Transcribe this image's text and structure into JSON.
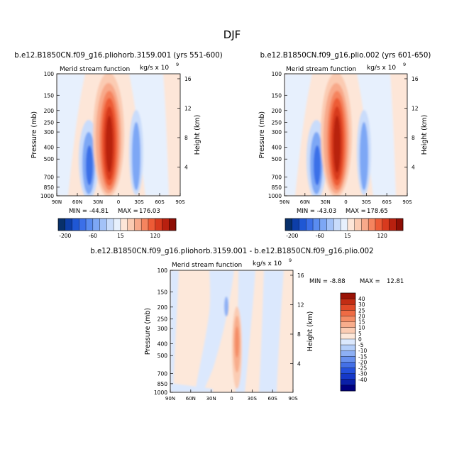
{
  "page": {
    "title": "DJF",
    "min_max_sep": "MAX ="
  },
  "palettes": {
    "top": [
      "#08306b",
      "#0d3ea8",
      "#1f57d4",
      "#3b6fe8",
      "#5a8cf0",
      "#7da7f5",
      "#a3c2f8",
      "#c9dcfb",
      "#e7f0fd",
      "#fde6d8",
      "#fbcbb2",
      "#f8a98a",
      "#f5845f",
      "#ed5b36",
      "#d83a1e",
      "#b8200f",
      "#8e0e05"
    ],
    "diff": [
      "#000080",
      "#0a1fa8",
      "#1538c8",
      "#2450dc",
      "#4470e6",
      "#6890ee",
      "#8eb0f4",
      "#b4cef9",
      "#dbe8fd",
      "#fde8da",
      "#fbccb3",
      "#f8ad8c",
      "#f48d66",
      "#ee6b44",
      "#e04a28",
      "#c22d14",
      "#9a1306"
    ]
  },
  "colorbars": {
    "top_labels": [
      "-200",
      "-60",
      "15",
      "120"
    ],
    "diff_labels": [
      "40",
      "30",
      "25",
      "20",
      "15",
      "10",
      "5",
      "0",
      "-5",
      "-10",
      "-15",
      "-20",
      "-25",
      "-30",
      "-40"
    ]
  },
  "chart_data": [
    {
      "type": "heatmap",
      "title": "b.e12.B1850CN.f09_g16.pliohorb.3159.001 (yrs 551-600)",
      "subtitle_left": "Merid stream function",
      "subtitle_right": "kg/s x 10",
      "subtitle_exp": "9",
      "ylabel": "Pressure (mb)",
      "ylabel_right": "Height (km)",
      "x_ticks": [
        "90N",
        "60N",
        "30N",
        "0",
        "30S",
        "60S",
        "90S"
      ],
      "y_ticks": [
        "100",
        "150",
        "200",
        "250",
        "300",
        "400",
        "500",
        "700",
        "850",
        "1000"
      ],
      "y_right_ticks": [
        "16",
        "12",
        "8",
        "4"
      ],
      "min_label": "MIN = -44.81",
      "max_value": "176.03",
      "features": [
        {
          "lat": 5,
          "p": 400,
          "value": 176.03
        },
        {
          "lat": 50,
          "p": 450,
          "value": -44.81
        },
        {
          "lat": -35,
          "p": 450,
          "value": -40
        },
        {
          "lat": -60,
          "p": 500,
          "value": 15
        }
      ]
    },
    {
      "type": "heatmap",
      "title": "b.e12.B1850CN.f09_g16.plio.002 (yrs 601-650)",
      "subtitle_left": "Merid stream function",
      "subtitle_right": "kg/s x 10",
      "subtitle_exp": "9",
      "ylabel": "Pressure (mb)",
      "ylabel_right": "Height (km)",
      "x_ticks": [
        "90N",
        "60N",
        "30N",
        "0",
        "30S",
        "60S",
        "90S"
      ],
      "y_ticks": [
        "100",
        "150",
        "200",
        "250",
        "300",
        "400",
        "500",
        "700",
        "850",
        "1000"
      ],
      "y_right_ticks": [
        "16",
        "12",
        "8",
        "4"
      ],
      "min_label": "MIN = -43.03",
      "max_value": "178.65",
      "features": [
        {
          "lat": 5,
          "p": 400,
          "value": 178.65
        },
        {
          "lat": 50,
          "p": 450,
          "value": -43.03
        },
        {
          "lat": -35,
          "p": 450,
          "value": -40
        },
        {
          "lat": -60,
          "p": 500,
          "value": 15
        }
      ]
    },
    {
      "type": "heatmap",
      "title": "b.e12.B1850CN.f09_g16.pliohorb.3159.001 - b.e12.B1850CN.f09_g16.plio.002",
      "subtitle_left": "Merid stream function",
      "subtitle_right": "kg/s x 10",
      "subtitle_exp": "9",
      "ylabel": "Pressure (mb)",
      "ylabel_right": "Height (km)",
      "x_ticks": [
        "90N",
        "60N",
        "30N",
        "0",
        "30S",
        "60S",
        "90S"
      ],
      "y_ticks": [
        "100",
        "150",
        "200",
        "250",
        "300",
        "400",
        "500",
        "700",
        "850",
        "1000"
      ],
      "y_right_ticks": [
        "16",
        "12",
        "8",
        "4"
      ],
      "min_label": "MIN = -8.88",
      "max_value": "12.81",
      "features": [
        {
          "lat": -5,
          "p": 400,
          "value": 12.81
        },
        {
          "lat": 5,
          "p": 230,
          "value": -8.88
        }
      ]
    }
  ]
}
